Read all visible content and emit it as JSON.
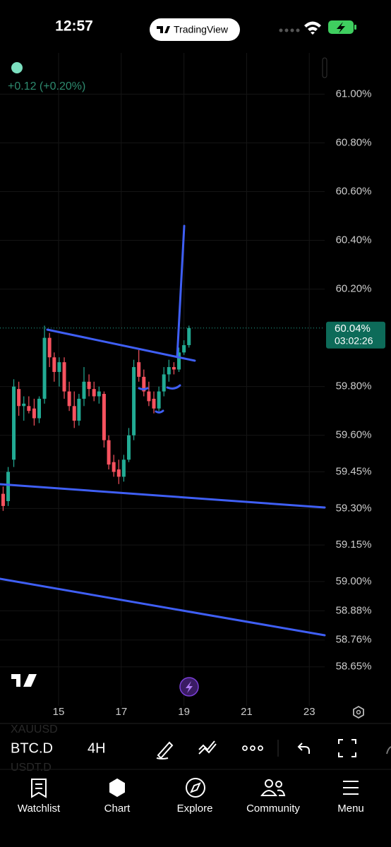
{
  "status_bar": {
    "time": "12:57",
    "app": "TradingView"
  },
  "change": "+0.12 (+0.20%)",
  "chart_data": {
    "type": "candlestick",
    "x": [
      13.23,
      13.39,
      13.57,
      13.73,
      13.89,
      14.05,
      14.22,
      14.38,
      14.55,
      14.71,
      14.86,
      15.02,
      15.18,
      15.34,
      15.5,
      15.65,
      15.81,
      15.97,
      16.13,
      16.29,
      16.45,
      16.6,
      16.76,
      16.92,
      17.08,
      17.24,
      17.4,
      17.56,
      17.72,
      17.88,
      18.04,
      18.2,
      18.36,
      18.52,
      18.68,
      18.84,
      19.0,
      19.16
    ],
    "open": [
      59.36,
      59.33,
      59.5,
      59.79,
      59.72,
      59.72,
      59.71,
      59.67,
      59.75,
      60.0,
      59.92,
      59.86,
      59.9,
      59.78,
      59.72,
      59.66,
      59.75,
      59.82,
      59.79,
      59.76,
      59.77,
      59.58,
      59.49,
      59.46,
      59.43,
      59.5,
      59.6,
      59.9,
      59.84,
      59.78,
      59.75,
      59.71,
      59.78,
      59.85,
      59.88,
      59.87,
      59.94,
      59.97
    ],
    "high": [
      59.39,
      59.47,
      59.83,
      59.82,
      59.76,
      59.76,
      59.75,
      59.76,
      60.05,
      60.02,
      59.94,
      59.92,
      59.92,
      59.82,
      59.78,
      59.77,
      59.88,
      59.85,
      59.82,
      59.8,
      59.78,
      59.6,
      59.52,
      59.5,
      59.52,
      59.63,
      59.91,
      59.95,
      59.87,
      59.82,
      59.78,
      59.8,
      59.88,
      59.91,
      59.9,
      59.96,
      59.99,
      60.05
    ],
    "low": [
      59.29,
      59.31,
      59.47,
      59.68,
      59.66,
      59.69,
      59.64,
      59.65,
      59.73,
      59.88,
      59.82,
      59.8,
      59.75,
      59.7,
      59.63,
      59.64,
      59.72,
      59.76,
      59.74,
      59.73,
      59.55,
      59.46,
      59.43,
      59.4,
      59.41,
      59.49,
      59.58,
      59.82,
      59.76,
      59.72,
      59.69,
      59.7,
      59.76,
      59.82,
      59.85,
      59.86,
      59.93,
      59.96
    ],
    "close": [
      59.31,
      59.45,
      59.8,
      59.72,
      59.73,
      59.7,
      59.67,
      59.75,
      60.0,
      59.92,
      59.86,
      59.9,
      59.78,
      59.72,
      59.66,
      59.75,
      59.82,
      59.79,
      59.76,
      59.78,
      59.58,
      59.48,
      59.45,
      59.43,
      59.5,
      59.6,
      59.88,
      59.84,
      59.78,
      59.74,
      59.71,
      59.78,
      59.85,
      59.88,
      59.87,
      59.94,
      59.97,
      60.04
    ],
    "up_color": "#22ab94",
    "down_color": "#f7525f",
    "xlim": [
      13.13,
      23.49
    ],
    "xticks": [
      15,
      17,
      19,
      21,
      23
    ],
    "ylim": [
      58.49,
      61.14
    ],
    "yticks": [
      {
        "value": 61.0,
        "label": "61.00%"
      },
      {
        "value": 60.8,
        "label": "60.80%"
      },
      {
        "value": 60.6,
        "label": "60.60%"
      },
      {
        "value": 60.4,
        "label": "60.40%"
      },
      {
        "value": 60.2,
        "label": "60.20%"
      },
      {
        "value": 59.8,
        "label": "59.80%"
      },
      {
        "value": 59.6,
        "label": "59.60%"
      },
      {
        "value": 59.45,
        "label": "59.45%"
      },
      {
        "value": 59.3,
        "label": "59.30%"
      },
      {
        "value": 59.15,
        "label": "59.15%"
      },
      {
        "value": 59.0,
        "label": "59.00%"
      },
      {
        "value": 58.88,
        "label": "58.88%"
      },
      {
        "value": 58.76,
        "label": "58.76%"
      },
      {
        "value": 58.65,
        "label": "58.65%"
      }
    ],
    "grid": true
  },
  "price_label": "60.04%",
  "countdown": "03:02:26",
  "toolbar": {
    "symbol": "BTC.D",
    "interval": "4H",
    "watch_above": "XAUUSD",
    "watch_below": "USDT.D"
  },
  "nav": [
    "Watchlist",
    "Chart",
    "Explore",
    "Community",
    "Menu"
  ]
}
